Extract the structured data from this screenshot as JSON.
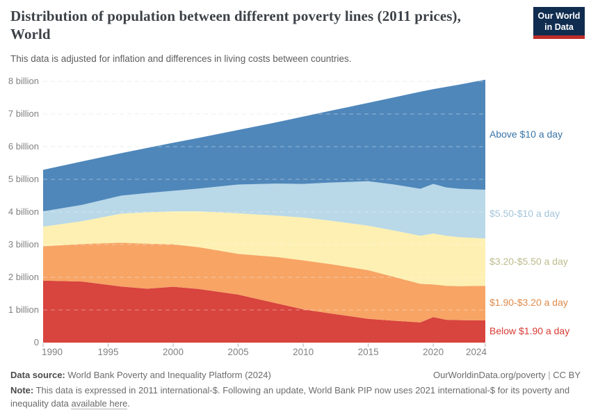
{
  "header": {
    "title_line1": "Distribution of population between different poverty lines (2011 prices),",
    "title_line2": "World",
    "subtitle": "This data is adjusted for inflation and differences in living costs between countries."
  },
  "logo": {
    "line1": "Our World",
    "line2": "in Data"
  },
  "chart_data": {
    "type": "area",
    "stacked": true,
    "title": "Distribution of population between different poverty lines (2011 prices), World",
    "xlabel": "",
    "ylabel": "",
    "unit": "billion people",
    "grid": true,
    "legend_position": "right",
    "x_range": [
      1990,
      2024
    ],
    "ylim": [
      0,
      8.4
    ],
    "xticks": [
      1990,
      1995,
      2000,
      2005,
      2010,
      2015,
      2020,
      2024
    ],
    "yticks": [
      0,
      1,
      2,
      3,
      4,
      5,
      6,
      7,
      8
    ],
    "ytick_suffix": " billion",
    "x": [
      1990,
      1993,
      1996,
      1998,
      2000,
      2002,
      2005,
      2008,
      2010,
      2012,
      2015,
      2017,
      2019,
      2020,
      2021,
      2022,
      2024
    ],
    "series": [
      {
        "name": "Below $1.90 a day",
        "color": "#d8443e",
        "label_color": "#d73b33",
        "values": [
          1.9,
          1.87,
          1.72,
          1.65,
          1.71,
          1.64,
          1.47,
          1.2,
          1.02,
          0.9,
          0.73,
          0.67,
          0.62,
          0.78,
          0.7,
          0.69,
          0.68
        ]
      },
      {
        "name": "$1.90-$3.20 a day",
        "color": "#f7a465",
        "label_color": "#e08a4a",
        "values": [
          1.05,
          1.15,
          1.34,
          1.38,
          1.3,
          1.28,
          1.25,
          1.42,
          1.5,
          1.51,
          1.49,
          1.34,
          1.18,
          1.0,
          1.04,
          1.04,
          1.06
        ]
      },
      {
        "name": "$3.20-$5.50 a day",
        "color": "#fdf0b2",
        "label_color": "#bdbb8d",
        "values": [
          0.6,
          0.7,
          0.89,
          0.96,
          1.01,
          1.1,
          1.24,
          1.27,
          1.31,
          1.33,
          1.36,
          1.42,
          1.47,
          1.56,
          1.53,
          1.5,
          1.45
        ]
      },
      {
        "name": "$5.50-$10 a day",
        "color": "#b9d8e8",
        "label_color": "#a3c4d9",
        "values": [
          0.47,
          0.5,
          0.55,
          0.59,
          0.63,
          0.7,
          0.88,
          0.98,
          1.03,
          1.16,
          1.36,
          1.41,
          1.44,
          1.52,
          1.48,
          1.48,
          1.49
        ]
      },
      {
        "name": "Above $10 a day",
        "color": "#4f87ba",
        "label_color": "#3974a6",
        "values": [
          1.27,
          1.33,
          1.3,
          1.38,
          1.47,
          1.55,
          1.67,
          1.88,
          2.06,
          2.19,
          2.4,
          2.67,
          2.97,
          2.9,
          3.08,
          3.19,
          3.37
        ]
      }
    ]
  },
  "footer": {
    "source_label": "Data source:",
    "source_value": "World Bank Poverty and Inequality Platform (2024)",
    "site": "OurWorldinData.org/poverty",
    "separator": "|",
    "license": "CC BY",
    "note_label": "Note:",
    "note_text": "This data is expressed in 2011 international-$. Following an update, World Bank PIP now uses 2021 international-$ for its poverty and inequality data",
    "note_link": "available here",
    "note_suffix": "."
  }
}
